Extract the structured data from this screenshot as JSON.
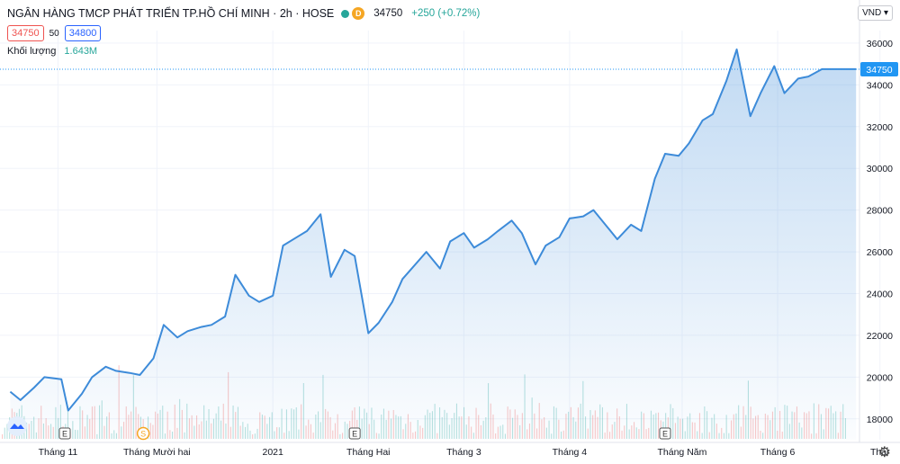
{
  "header": {
    "title": "NGÂN HÀNG TMCP PHÁT TRIỂN TP.HỒ CHÍ MINH · 2h · HOSE",
    "badge": "D",
    "price": "34750",
    "change": "+250 (+0.72%)",
    "bid": "34750",
    "spread": "50",
    "ask": "34800",
    "volume_label": "Khối lượng",
    "volume_value": "1.643M",
    "currency": "VND",
    "last_price_label": "34750"
  },
  "colors": {
    "line": "#3d8bd9",
    "up_volume": "#26a69a",
    "down_volume": "#ef5350",
    "last_price_tag": "#2196f3"
  },
  "icons": [
    "tradingview-logo-icon",
    "gear-icon",
    "chevron-down-icon"
  ],
  "chart_data": {
    "type": "area",
    "x": [
      "2020-10-19",
      "2020-10-22",
      "2020-10-26",
      "2020-10-29",
      "2020-11-03",
      "2020-11-05",
      "2020-11-09",
      "2020-11-12",
      "2020-11-16",
      "2020-11-19",
      "2020-11-23",
      "2020-11-26",
      "2020-11-30",
      "2020-12-03",
      "2020-12-07",
      "2020-12-10",
      "2020-12-14",
      "2020-12-17",
      "2020-12-21",
      "2020-12-24",
      "2020-12-28",
      "2020-12-31",
      "2021-01-04",
      "2021-01-07",
      "2021-01-11",
      "2021-01-14",
      "2021-01-18",
      "2021-01-21",
      "2021-01-25",
      "2021-01-28",
      "2021-02-01",
      "2021-02-04",
      "2021-02-08",
      "2021-02-11",
      "2021-02-18",
      "2021-02-22",
      "2021-02-25",
      "2021-03-01",
      "2021-03-04",
      "2021-03-08",
      "2021-03-11",
      "2021-03-15",
      "2021-03-18",
      "2021-03-22",
      "2021-03-25",
      "2021-03-29",
      "2021-04-01",
      "2021-04-05",
      "2021-04-08",
      "2021-04-12",
      "2021-04-15",
      "2021-04-19",
      "2021-04-22",
      "2021-04-26",
      "2021-04-29",
      "2021-05-03",
      "2021-05-06",
      "2021-05-10",
      "2021-05-13",
      "2021-05-17",
      "2021-05-20",
      "2021-05-24",
      "2021-05-27",
      "2021-05-31",
      "2021-06-03",
      "2021-06-07",
      "2021-06-10",
      "2021-06-14",
      "2021-06-17",
      "2021-06-21",
      "2021-06-24"
    ],
    "series": [
      {
        "values": [
          19300,
          18900,
          19500,
          20000,
          19900,
          18400,
          19200,
          20000,
          20500,
          20300,
          20200,
          20100,
          20900,
          22500,
          21900,
          22200,
          22400,
          22500,
          22900,
          24900,
          23900,
          23600,
          23900,
          26300,
          26700,
          27000,
          27800,
          24800,
          26100,
          25800,
          22100,
          22600,
          23600,
          24700,
          26000,
          25200,
          26500,
          26900,
          26200,
          26600,
          27000,
          27500,
          26900,
          25400,
          26300,
          26700,
          27600,
          27700,
          28000,
          27200,
          26600,
          27300,
          27000,
          29500,
          30700,
          30600,
          31200,
          32300,
          32600,
          34200,
          35700,
          32500,
          33600,
          34900,
          33600,
          34300,
          34400,
          34750,
          34750,
          34750,
          34750
        ]
      }
    ],
    "ylim": [
      17000,
      36600
    ],
    "yticks": [
      18000,
      20000,
      22000,
      24000,
      26000,
      28000,
      30000,
      32000,
      34000,
      36000
    ],
    "xticks": [
      {
        "date": "2020-11-02",
        "label": "Tháng 11"
      },
      {
        "date": "2020-12-01",
        "label": "Tháng Mười hai"
      },
      {
        "date": "2021-01-04",
        "label": "2021"
      },
      {
        "date": "2021-02-01",
        "label": "Tháng Hai"
      },
      {
        "date": "2021-03-01",
        "label": "Tháng 3"
      },
      {
        "date": "2021-04-01",
        "label": "Tháng 4"
      },
      {
        "date": "2021-05-04",
        "label": "Tháng Năm"
      },
      {
        "date": "2021-06-01",
        "label": "Tháng 6"
      },
      {
        "date": "2021-07-01",
        "label": "Thár"
      }
    ],
    "event_markers": [
      {
        "date": "2020-11-04",
        "label": "E"
      },
      {
        "date": "2020-11-27",
        "label": "S"
      },
      {
        "date": "2021-01-28",
        "label": "E"
      },
      {
        "date": "2021-04-29",
        "label": "E"
      }
    ],
    "x_start": "2020-10-16",
    "x_end": "2021-06-25",
    "grid": true,
    "legend": "none"
  }
}
